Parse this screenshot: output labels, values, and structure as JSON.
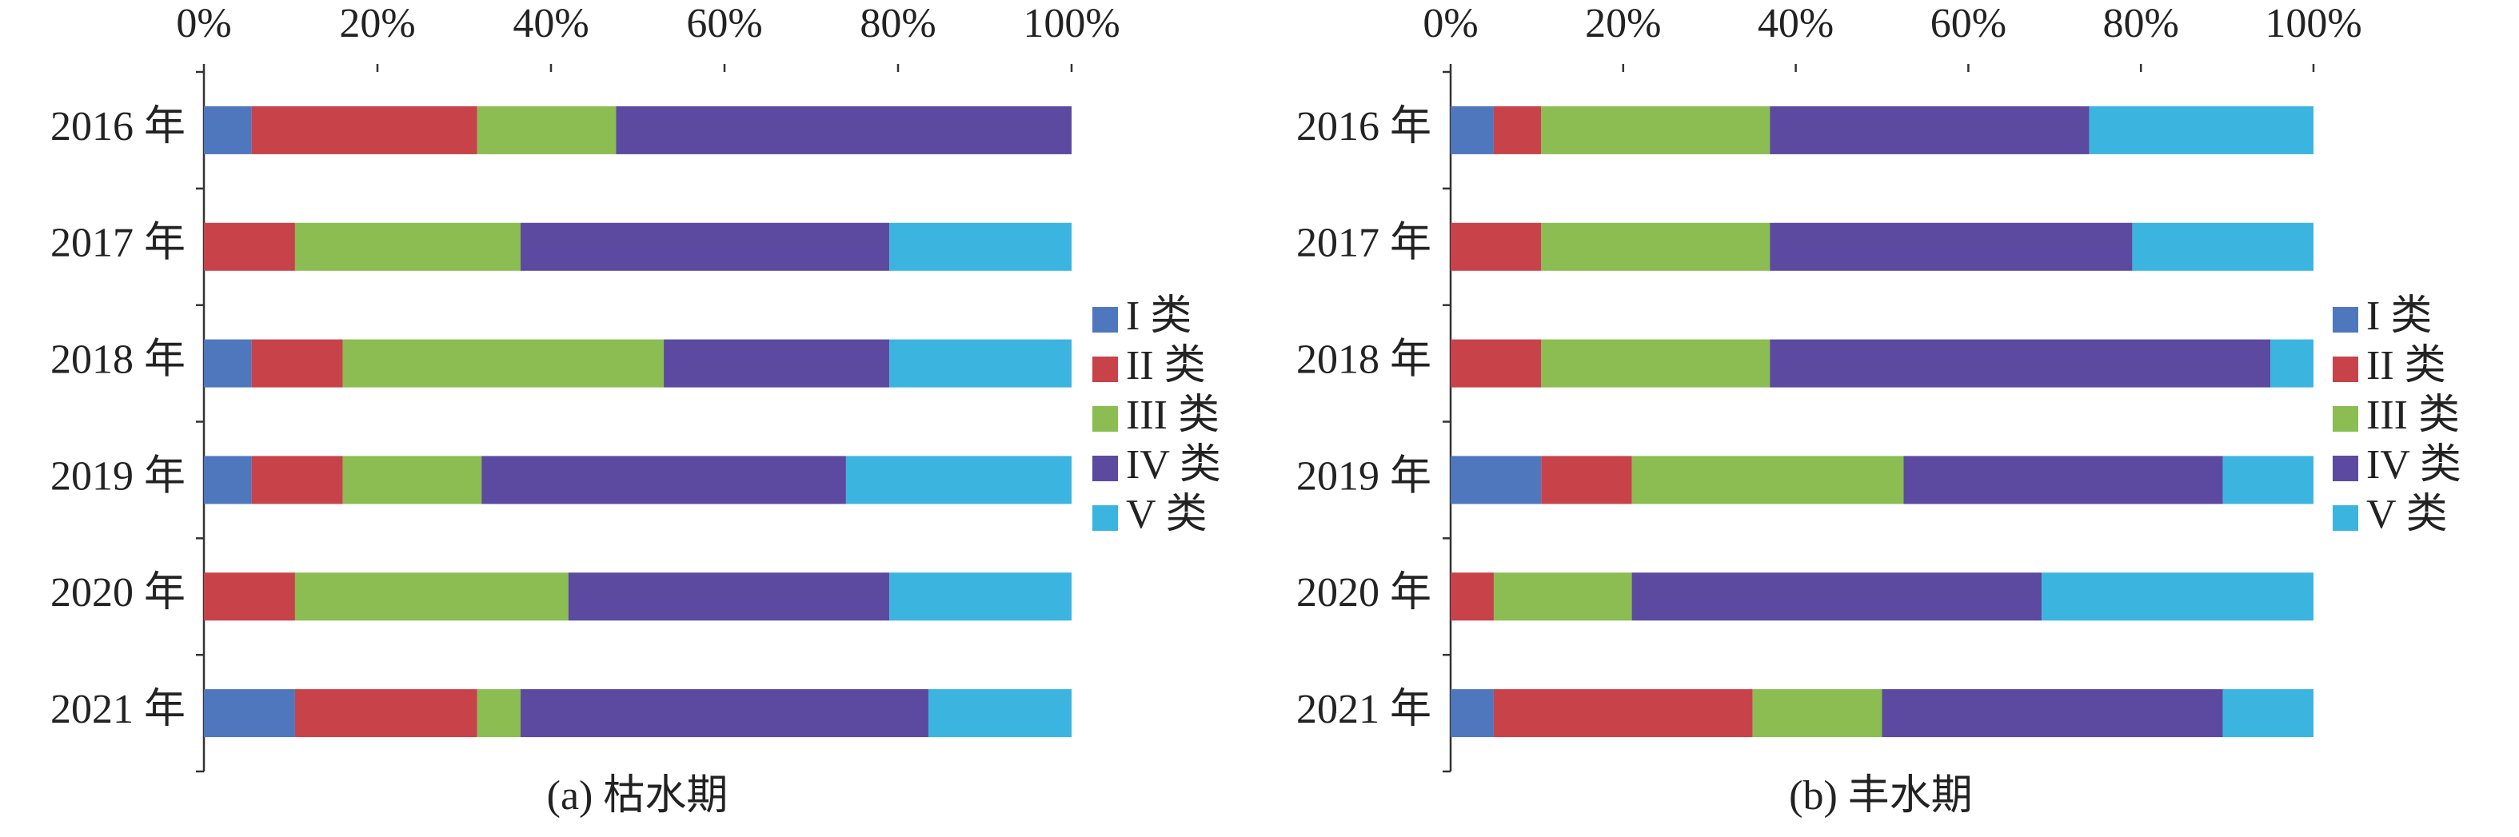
{
  "chart_data": [
    {
      "type": "bar",
      "horizontal": true,
      "stacked": true,
      "title": "(a) 枯水期",
      "categories": [
        "2016 年",
        "2017 年",
        "2018 年",
        "2019 年",
        "2020 年",
        "2021 年"
      ],
      "series": [
        {
          "name": "I 类",
          "color": "#4f77be",
          "values": [
            5.5,
            0,
            5.5,
            5.5,
            0,
            10.5
          ]
        },
        {
          "name": "II 类",
          "color": "#c8424a",
          "values": [
            26,
            10.5,
            10.5,
            10.5,
            10.5,
            21
          ]
        },
        {
          "name": "III 类",
          "color": "#8bbd52",
          "values": [
            16,
            26,
            37,
            16,
            31.5,
            5
          ]
        },
        {
          "name": "IV 类",
          "color": "#5b4a9f",
          "values": [
            52.5,
            42.5,
            26,
            42,
            37,
            47
          ]
        },
        {
          "name": "V 类",
          "color": "#3cb4e0",
          "values": [
            0,
            21,
            21,
            26,
            21,
            16.5
          ]
        }
      ],
      "xlim": [
        0,
        100
      ],
      "xticks": [
        {
          "value": 0,
          "label": "0%"
        },
        {
          "value": 20,
          "label": "20%"
        },
        {
          "value": 40,
          "label": "40%"
        },
        {
          "value": 60,
          "label": "60%"
        },
        {
          "value": 80,
          "label": "80%"
        },
        {
          "value": 100,
          "label": "100%"
        }
      ],
      "legend": "right"
    },
    {
      "type": "bar",
      "horizontal": true,
      "stacked": true,
      "title": "(b) 丰水期",
      "categories": [
        "2016 年",
        "2017 年",
        "2018 年",
        "2019 年",
        "2020 年",
        "2021 年"
      ],
      "series": [
        {
          "name": "I 类",
          "color": "#4f77be",
          "values": [
            5,
            0,
            0,
            10.5,
            0,
            5
          ]
        },
        {
          "name": "II 类",
          "color": "#c8424a",
          "values": [
            5.5,
            10.5,
            10.5,
            10.5,
            5,
            30
          ]
        },
        {
          "name": "III 类",
          "color": "#8bbd52",
          "values": [
            26.5,
            26.5,
            26.5,
            31.5,
            16,
            15
          ]
        },
        {
          "name": "IV 类",
          "color": "#5b4a9f",
          "values": [
            37,
            42,
            58,
            37,
            47.5,
            39.5
          ]
        },
        {
          "name": "V 类",
          "color": "#3cb4e0",
          "values": [
            26,
            21,
            5,
            10.5,
            31.5,
            10.5
          ]
        }
      ],
      "xlim": [
        0,
        100
      ],
      "xticks": [
        {
          "value": 0,
          "label": "0%"
        },
        {
          "value": 20,
          "label": "20%"
        },
        {
          "value": 40,
          "label": "40%"
        },
        {
          "value": 60,
          "label": "60%"
        },
        {
          "value": 80,
          "label": "80%"
        },
        {
          "value": 100,
          "label": "100%"
        }
      ],
      "legend": "right"
    }
  ]
}
